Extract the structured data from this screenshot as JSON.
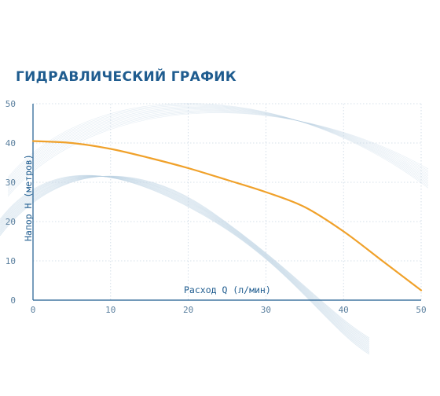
{
  "title": "ГИДРАВЛИЧЕСКИЙ ГРАФИК",
  "colors": {
    "title": "#1f5c8f",
    "curve": "#f0a12a",
    "axis": "#1f5c8f",
    "tick": "#5a7f9e",
    "grid": "#c9d6e3",
    "decor": "#b8cfe2"
  },
  "chart_data": {
    "type": "line",
    "title": "ГИДРАВЛИЧЕСКИЙ ГРАФИК",
    "xlabel": "Расход Q (л/мин)",
    "ylabel": "Напор Н (метров)",
    "xlim": [
      0,
      50
    ],
    "ylim": [
      0,
      50
    ],
    "x_ticks": [
      "0",
      "10",
      "20",
      "30",
      "40",
      "50"
    ],
    "y_ticks": [
      "0",
      "10",
      "20",
      "30",
      "40",
      "50"
    ],
    "grid": true,
    "series": [
      {
        "x": [
          0,
          5,
          10,
          15,
          20,
          25,
          30,
          35,
          40,
          45,
          50
        ],
        "y": [
          40.5,
          40,
          38.5,
          36.2,
          33.6,
          30.6,
          27.5,
          23.7,
          17.5,
          10,
          2.5
        ]
      }
    ]
  }
}
